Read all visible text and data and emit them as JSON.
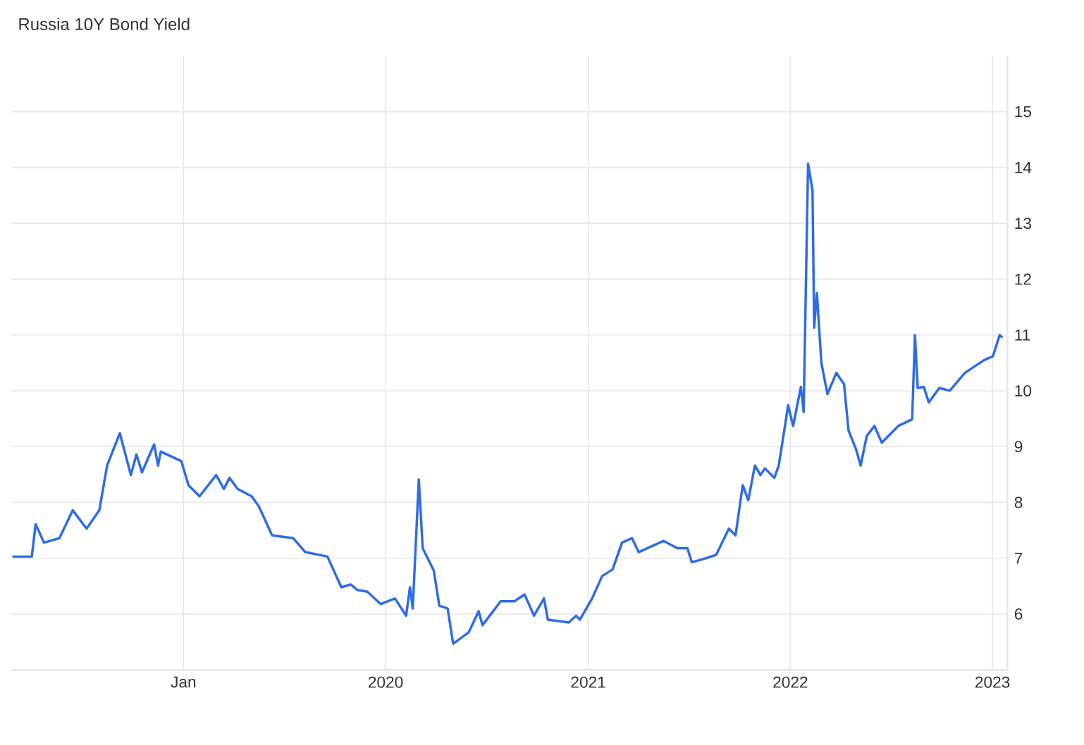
{
  "chart_data": {
    "type": "line",
    "title": "Russia 10Y Bond Yield",
    "xlim": [
      "2018-02-24",
      "2023-01-28"
    ],
    "ylim": [
      5,
      16
    ],
    "xticks": [
      {
        "value": "2019-01-01",
        "label": "Jan"
      },
      {
        "value": "2020-01-01",
        "label": "2020"
      },
      {
        "value": "2021-01-01",
        "label": "2021"
      },
      {
        "value": "2022-01-01",
        "label": "2022"
      },
      {
        "value": "2023-01-01",
        "label": "2023"
      }
    ],
    "yticks": [
      6,
      7,
      8,
      9,
      10,
      11,
      12,
      13,
      14,
      15
    ],
    "grid": true,
    "marker": "none",
    "line_style": "solid",
    "x": [
      "2018-02-26",
      "2018-04-02",
      "2018-04-09",
      "2018-04-24",
      "2018-05-22",
      "2018-06-15",
      "2018-07-10",
      "2018-08-02",
      "2018-08-16",
      "2018-09-08",
      "2018-09-28",
      "2018-10-08",
      "2018-10-18",
      "2018-11-09",
      "2018-11-16",
      "2018-11-21",
      "2018-12-28",
      "2019-01-10",
      "2019-01-30",
      "2019-03-01",
      "2019-03-15",
      "2019-03-25",
      "2019-04-09",
      "2019-05-04",
      "2019-05-17",
      "2019-06-10",
      "2019-07-18",
      "2019-08-09",
      "2019-09-18",
      "2019-10-13",
      "2019-10-30",
      "2019-11-11",
      "2019-11-29",
      "2019-12-23",
      "2020-01-18",
      "2020-02-07",
      "2020-02-14",
      "2020-02-19",
      "2020-03-01",
      "2020-03-08",
      "2020-03-28",
      "2020-04-07",
      "2020-04-22",
      "2020-05-02",
      "2020-05-30",
      "2020-06-17",
      "2020-06-24",
      "2020-07-27",
      "2020-08-21",
      "2020-09-08",
      "2020-09-25",
      "2020-10-13",
      "2020-10-20",
      "2020-11-27",
      "2020-12-10",
      "2020-12-17",
      "2021-01-08",
      "2021-01-26",
      "2021-02-14",
      "2021-03-03",
      "2021-03-21",
      "2021-04-02",
      "2021-05-17",
      "2021-06-11",
      "2021-06-29",
      "2021-07-07",
      "2021-07-26",
      "2021-08-20",
      "2021-09-12",
      "2021-09-24",
      "2021-10-07",
      "2021-10-17",
      "2021-10-29",
      "2021-11-08",
      "2021-11-16",
      "2021-12-03",
      "2021-12-11",
      "2021-12-21",
      "2021-12-28",
      "2022-01-06",
      "2022-01-20",
      "2022-01-25",
      "2022-02-02",
      "2022-02-10",
      "2022-02-13",
      "2022-02-18",
      "2022-02-26",
      "2022-03-09",
      "2022-03-25",
      "2022-04-08",
      "2022-04-16",
      "2022-04-30",
      "2022-05-08",
      "2022-05-19",
      "2022-06-02",
      "2022-06-15",
      "2022-07-15",
      "2022-08-09",
      "2022-08-14",
      "2022-08-19",
      "2022-08-30",
      "2022-09-08",
      "2022-09-27",
      "2022-10-16",
      "2022-11-12",
      "2022-12-17",
      "2023-01-02",
      "2023-01-14",
      "2023-01-19"
    ],
    "series": [
      {
        "color": "#2f6be8",
        "values": [
          7.03,
          7.03,
          7.61,
          7.28,
          7.36,
          7.86,
          7.53,
          7.86,
          8.66,
          9.24,
          8.49,
          8.86,
          8.54,
          9.04,
          8.66,
          8.91,
          8.74,
          8.31,
          8.11,
          8.49,
          8.24,
          8.44,
          8.24,
          8.11,
          7.93,
          7.41,
          7.36,
          7.11,
          7.03,
          6.48,
          6.53,
          6.43,
          6.4,
          6.18,
          6.28,
          5.97,
          6.48,
          6.1,
          8.41,
          7.18,
          6.78,
          6.15,
          6.1,
          5.47,
          5.67,
          6.05,
          5.8,
          6.23,
          6.23,
          6.35,
          5.97,
          6.28,
          5.9,
          5.85,
          5.97,
          5.9,
          6.28,
          6.68,
          6.8,
          7.28,
          7.36,
          7.11,
          7.31,
          7.18,
          7.18,
          6.93,
          6.98,
          7.06,
          7.53,
          7.41,
          8.31,
          8.04,
          8.66,
          8.49,
          8.61,
          8.44,
          8.66,
          9.29,
          9.74,
          9.37,
          10.07,
          9.62,
          14.07,
          13.59,
          11.13,
          11.75,
          10.5,
          9.94,
          10.32,
          10.12,
          9.29,
          8.94,
          8.66,
          9.19,
          9.37,
          9.07,
          9.37,
          9.49,
          11.0,
          10.05,
          10.07,
          9.79,
          10.05,
          10.0,
          10.32,
          10.55,
          10.62,
          11.0,
          10.95
        ]
      }
    ]
  }
}
